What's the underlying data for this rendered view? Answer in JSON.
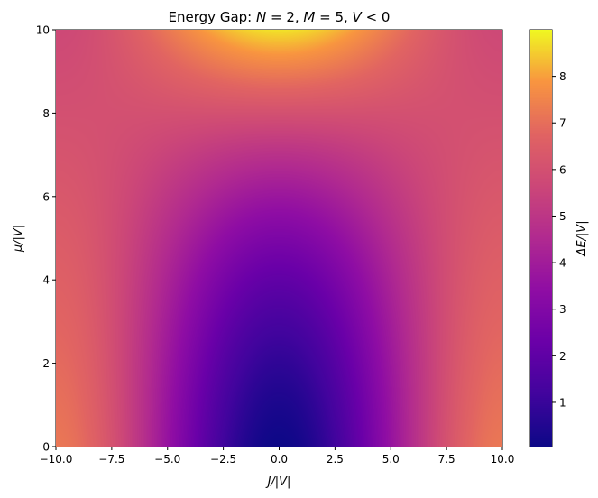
{
  "chart_data": {
    "type": "heatmap",
    "title": "Energy Gap: N = 2, M = 5, V < 0",
    "title_parts": [
      {
        "text": "Energy Gap: ",
        "italic": false
      },
      {
        "text": "N",
        "italic": true
      },
      {
        "text": " = 2, ",
        "italic": false
      },
      {
        "text": "M",
        "italic": true
      },
      {
        "text": " = 5, ",
        "italic": false
      },
      {
        "text": "V",
        "italic": true
      },
      {
        "text": " < 0",
        "italic": false
      }
    ],
    "xlabel": "J/|V|",
    "ylabel": "μ/|V|",
    "colorbar_label": "ΔE/|V|",
    "colormap": "plasma",
    "xlim": [
      -10,
      10
    ],
    "ylim": [
      0,
      10
    ],
    "xticks": [
      -10,
      -7.5,
      -5,
      -2.5,
      0,
      2.5,
      5,
      7.5,
      10
    ],
    "xtick_labels": [
      "−10.0",
      "−7.5",
      "−5.0",
      "−2.5",
      "0.0",
      "2.5",
      "5.0",
      "7.5",
      "10.0"
    ],
    "yticks": [
      0,
      2,
      4,
      6,
      8,
      10
    ],
    "ytick_labels": [
      "0",
      "2",
      "4",
      "6",
      "8",
      "10"
    ],
    "colorbar_range": [
      0.05,
      9.0
    ],
    "colorbar_ticks": [
      1,
      2,
      3,
      4,
      5,
      6,
      7,
      8
    ],
    "colorbar_tick_labels": [
      "1",
      "2",
      "3",
      "4",
      "5",
      "6",
      "7",
      "8"
    ],
    "sample_values": [
      {
        "x": 0,
        "y": 0,
        "value": 0.05
      },
      {
        "x": 0,
        "y": 2,
        "value": 1.0
      },
      {
        "x": 0,
        "y": 5,
        "value": 3.0
      },
      {
        "x": 0,
        "y": 8,
        "value": 7.0
      },
      {
        "x": 0,
        "y": 10,
        "value": 9.0
      },
      {
        "x": -10,
        "y": 0,
        "value": 7.0
      },
      {
        "x": 10,
        "y": 0,
        "value": 7.0
      },
      {
        "x": -10,
        "y": 10,
        "value": 5.8
      },
      {
        "x": 10,
        "y": 10,
        "value": 5.8
      },
      {
        "x": -5,
        "y": 5,
        "value": 4.5
      },
      {
        "x": 5,
        "y": 5,
        "value": 4.5
      }
    ]
  }
}
